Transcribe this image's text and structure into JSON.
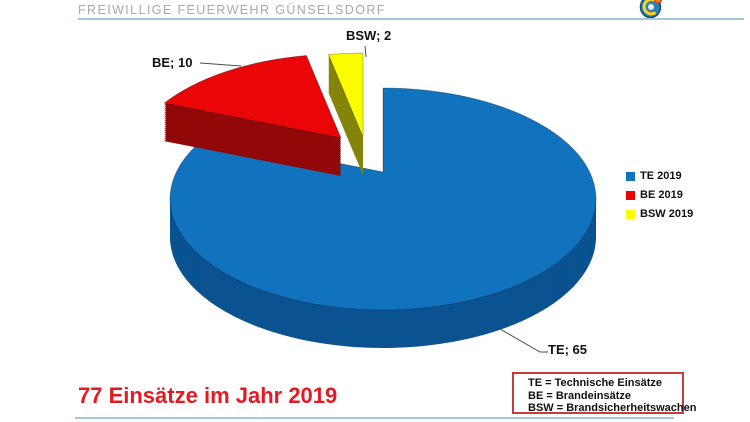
{
  "header": {
    "title": "FREIWILLIGE FEUERWEHR GÜNSELSDORF",
    "logo_icon": "fire-brigade-emblem",
    "rule_color": "#a4c7db"
  },
  "chart_data": {
    "type": "pie",
    "style": "3d-exploded",
    "total": 77,
    "legend_position": "right",
    "slices": [
      {
        "label": "TE",
        "value": 65,
        "data_label": "TE; 65",
        "legend_label": "TE 2019",
        "color": "#1172bd",
        "side_color": "#0a5290"
      },
      {
        "label": "BE",
        "value": 10,
        "data_label": "BE; 10",
        "legend_label": "BE 2019",
        "color": "#ea0606",
        "side_color": "#920808"
      },
      {
        "label": "BSW",
        "value": 2,
        "data_label": "BSW; 2",
        "legend_label": "BSW 2019",
        "color": "#fcfc00",
        "side_color": "#84840a"
      }
    ]
  },
  "footer": {
    "summary": "77 Einsätze im Jahr 2019",
    "summary_color": "#e21b22"
  },
  "abbrev_box": {
    "border_color": "#cb3a3a",
    "lines": [
      "TE = Technische Einsätze",
      "BE = Brandeinsätze",
      "BSW = Brandsicherheitswachen"
    ]
  }
}
